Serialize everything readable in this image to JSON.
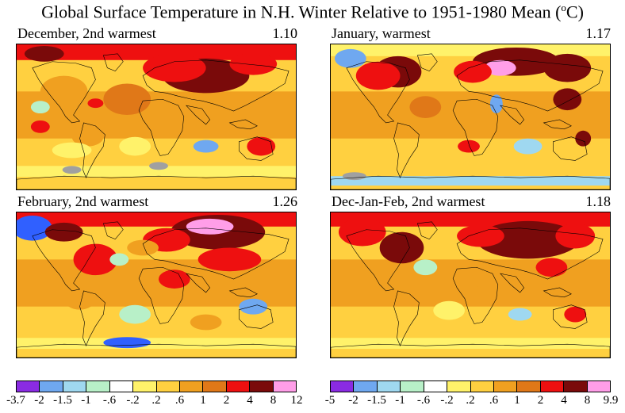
{
  "title": {
    "main": "Global Surface Temperature in N.H. Winter Relative to 1951-1980 Mean (",
    "sup": "o",
    "unit": "C)"
  },
  "panels": [
    {
      "label": "December, 2nd warmest",
      "value": "1.10"
    },
    {
      "label": "January, warmest",
      "value": "1.17"
    },
    {
      "label": "February, 2nd warmest",
      "value": "1.26"
    },
    {
      "label": "Dec-Jan-Feb, 2nd warmest",
      "value": "1.18"
    }
  ],
  "colors": {
    "bins": [
      "#8a2be2",
      "#3060ff",
      "#6fa8f0",
      "#9fd8f0",
      "#b8f0c8",
      "#ffffff",
      "#fff26a",
      "#ffd040",
      "#f0a020",
      "#e07818",
      "#ee1010",
      "#7a0a0a",
      "#ff9ee8"
    ],
    "land_outline": "#000000",
    "missing": "#a0a0a0"
  },
  "colorbars": [
    {
      "labels": [
        "-3.7",
        "-2",
        "-1.5",
        "-1",
        "-.6",
        "-.2",
        ".2",
        ".6",
        "1",
        "2",
        "4",
        "8",
        "12"
      ]
    },
    {
      "labels": [
        "-5",
        "-2",
        "-1.5",
        "-1",
        "-.6",
        "-.2",
        ".2",
        ".6",
        "1",
        "2",
        "4",
        "8",
        "9.9"
      ]
    }
  ]
}
